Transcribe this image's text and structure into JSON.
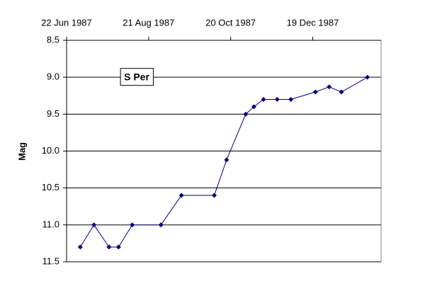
{
  "chart_data": {
    "type": "line",
    "annotation": "S Per",
    "y_label": "Mag",
    "x": [
      "1987-07-02",
      "1987-07-12",
      "1987-07-23",
      "1987-07-30",
      "1987-08-09",
      "1987-08-30",
      "1987-09-14",
      "1987-10-08",
      "1987-10-17",
      "1987-10-31",
      "1987-11-06",
      "1987-11-13",
      "1987-11-23",
      "1987-12-03",
      "1987-12-21",
      "1987-12-31",
      "1988-01-09",
      "1988-01-28"
    ],
    "series": [
      {
        "color": "#000080",
        "values": [
          11.3,
          11.0,
          11.3,
          11.3,
          11.0,
          11.0,
          10.6,
          10.6,
          10.12,
          9.5,
          9.4,
          9.3,
          9.3,
          9.3,
          9.2,
          9.13,
          9.2,
          9.0
        ]
      }
    ],
    "xlim": [
      "1987-06-22",
      "1988-02-07"
    ],
    "xticks": [
      {
        "value": "1987-06-22",
        "label": "22 Jun 1987"
      },
      {
        "value": "1987-08-21",
        "label": "21 Aug 1987"
      },
      {
        "value": "1987-10-20",
        "label": "20 Oct 1987"
      },
      {
        "value": "1987-12-19",
        "label": "19 Dec 1987"
      }
    ],
    "x_axis_position": "top",
    "ylim": [
      8.5,
      11.5
    ],
    "y_inverted": true,
    "yticks": [
      8.5,
      {
        "value": 9,
        "label": "9.0"
      },
      9.5,
      {
        "value": 10,
        "label": "10.0"
      },
      10.5,
      {
        "value": 11,
        "label": "11.0"
      },
      11.5
    ],
    "grid": true
  }
}
